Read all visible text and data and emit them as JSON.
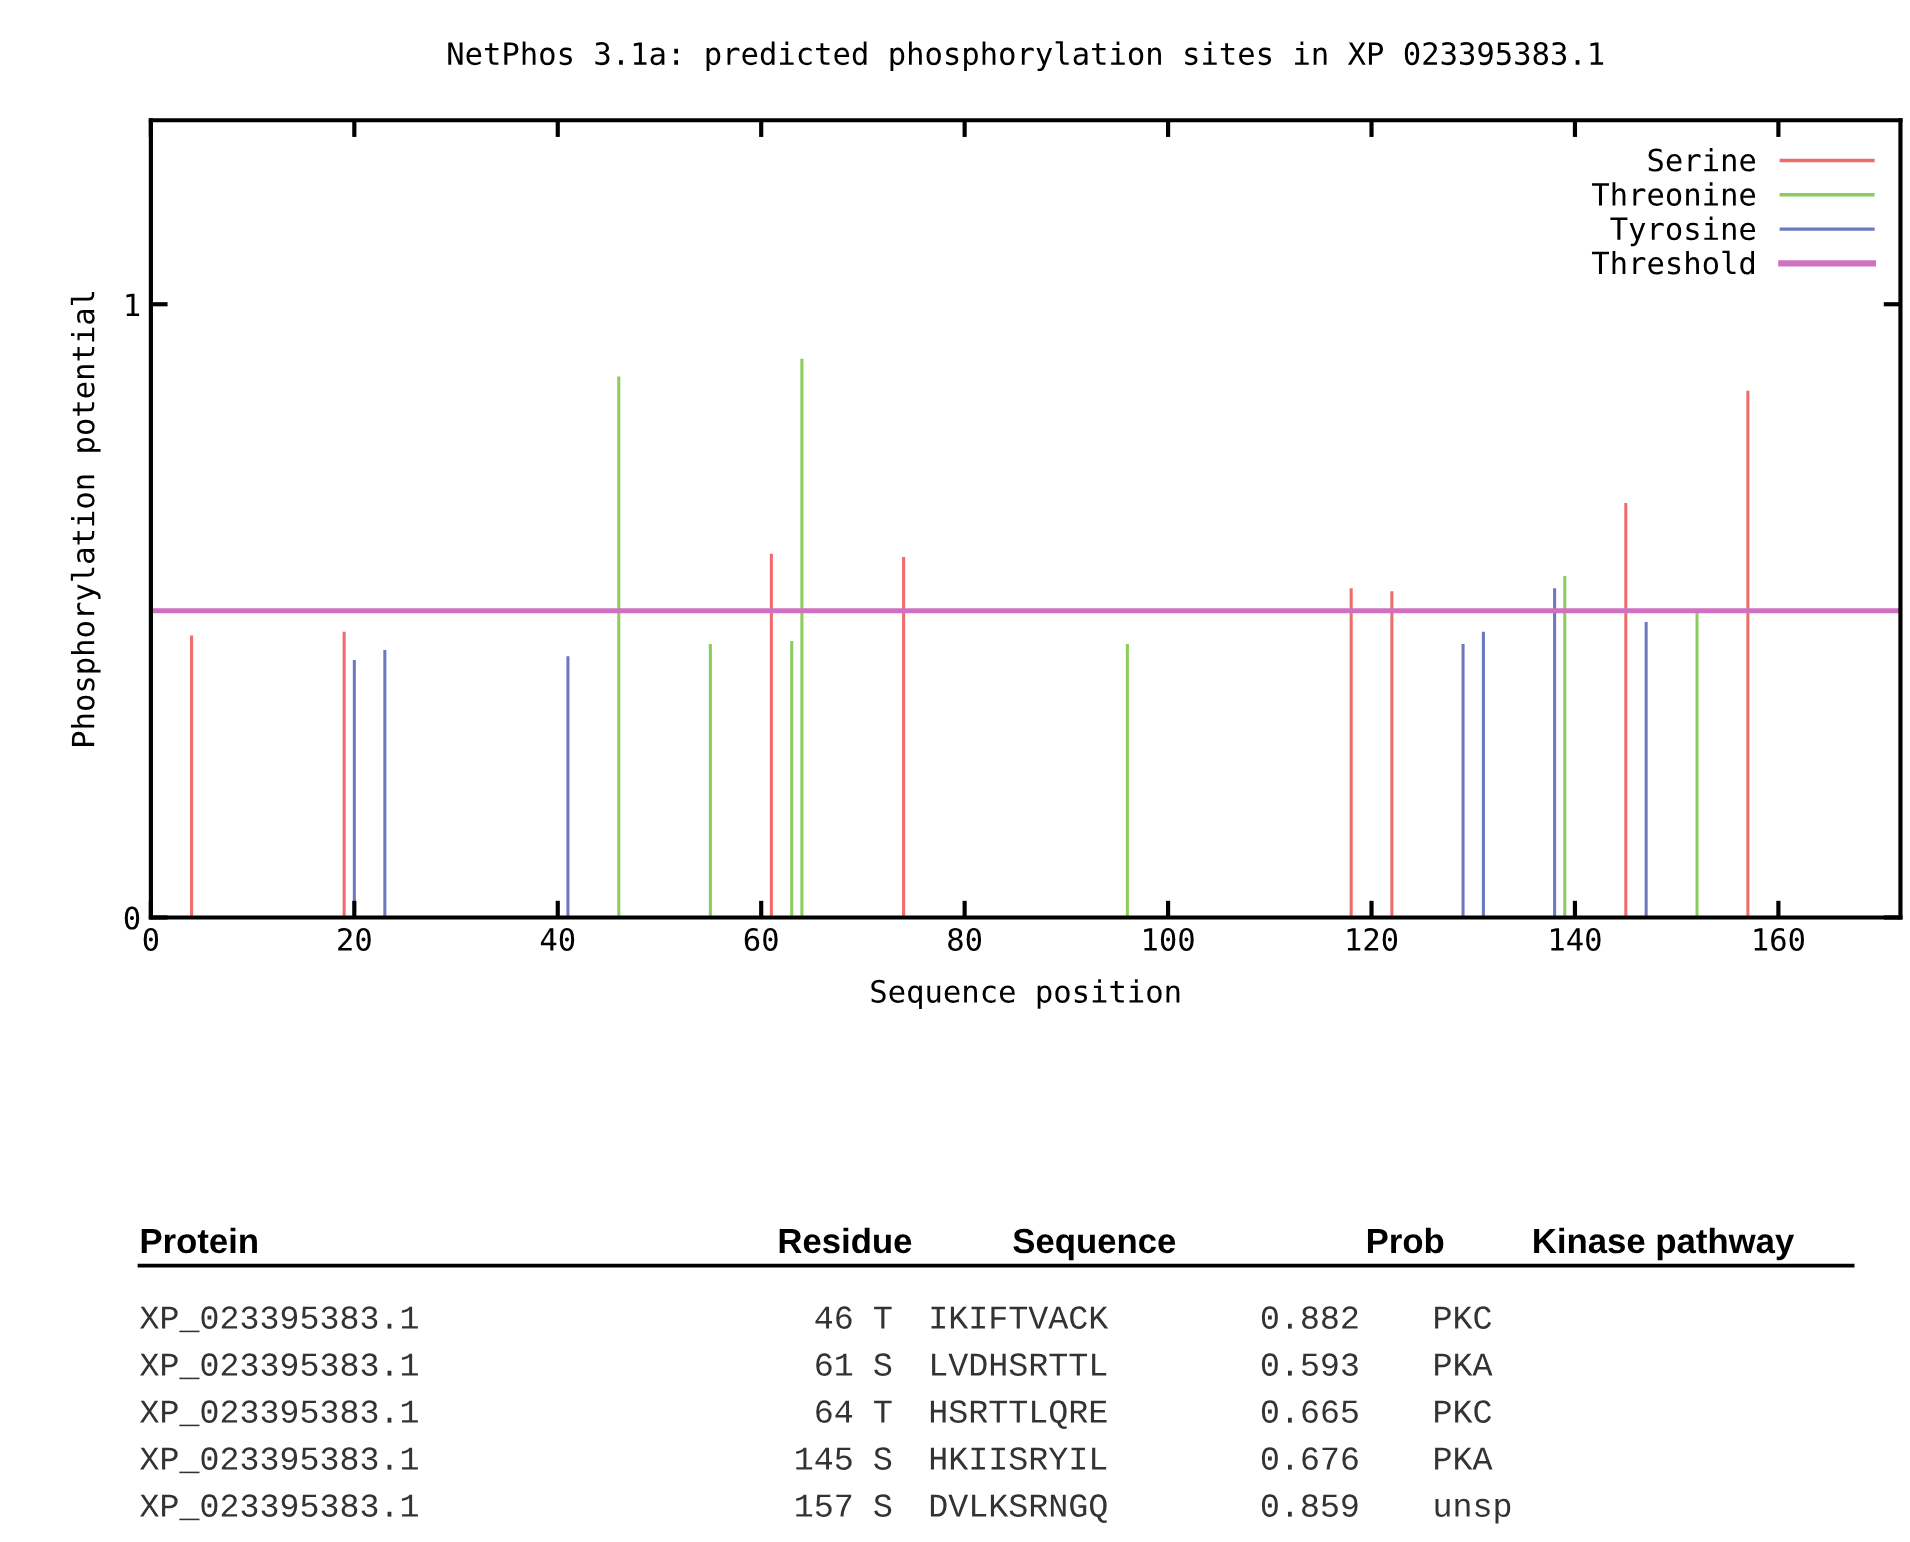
{
  "chart_data": {
    "type": "bar",
    "title": "NetPhos 3.1a: predicted phosphorylation sites in XP 023395383.1",
    "xlabel": "Sequence position",
    "ylabel": "Phosphorylation potential",
    "series": [
      {
        "name": "Serine",
        "color": "#f06c6c",
        "x": [
          4,
          19,
          61,
          74,
          118,
          122,
          145,
          157
        ],
        "values": [
          0.46,
          0.466,
          0.593,
          0.588,
          0.537,
          0.532,
          0.676,
          0.859
        ]
      },
      {
        "name": "Threonine",
        "color": "#8ccc5c",
        "x": [
          46,
          55,
          63,
          64,
          96,
          139,
          152
        ],
        "values": [
          0.882,
          0.446,
          0.451,
          0.911,
          0.446,
          0.557,
          0.499
        ]
      },
      {
        "name": "Tyrosine",
        "color": "#6c78c0",
        "x": [
          20,
          23,
          41,
          129,
          131,
          138,
          147
        ],
        "values": [
          0.42,
          0.436,
          0.426,
          0.446,
          0.466,
          0.537,
          0.482
        ]
      }
    ],
    "ref_lines": [
      {
        "axis": "y",
        "value": 0.5,
        "label": "Threshold",
        "color": "#d070c0"
      }
    ],
    "xlim": [
      0,
      172
    ],
    "ylim": [
      0,
      1.3
    ],
    "xticks": [
      0,
      20,
      40,
      60,
      80,
      100,
      120,
      140,
      160
    ],
    "yticks": [
      0,
      1
    ],
    "grid": false,
    "legend": "top right",
    "annotations": [
      "Protein",
      "Residue",
      "Sequence",
      "Prob",
      "Kinase pathway",
      "XP_023395383.1",
      "46",
      "T",
      "IKIFTVACK",
      "0.882",
      "PKC",
      "XP_023395383.1",
      "61",
      "S",
      "LVDHSRTTL",
      "0.593",
      "PKA",
      "XP_023395383.1",
      "64",
      "T",
      "HSRTTLQRE",
      "0.665",
      "PKC",
      "XP_023395383.1",
      "145",
      "S",
      "HKIISRYIL",
      "0.676",
      "PKA",
      "XP_023395383.1",
      "157",
      "S",
      "DVLKSRNGQ",
      "0.859",
      "unsp"
    ]
  }
}
